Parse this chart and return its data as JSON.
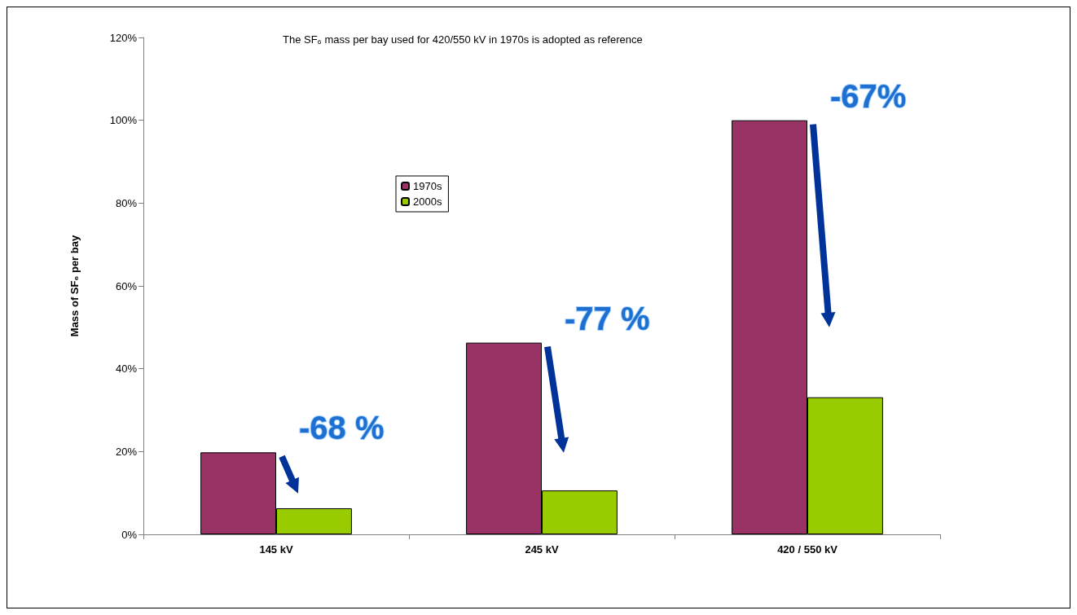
{
  "chart_data": {
    "type": "bar",
    "title": "The SF₆ mass per bay used for 420/550 kV in 1970s is adopted as reference",
    "ylabel": "Mass of SF₆ per bay",
    "categories": [
      "145 kV",
      "245 kV",
      "420 / 550 kV"
    ],
    "series": [
      {
        "name": "1970s",
        "color": "#993366",
        "values": [
          19.8,
          46.3,
          100
        ]
      },
      {
        "name": "2000s",
        "color": "#99cc00",
        "values": [
          6.3,
          10.6,
          33.1
        ]
      }
    ],
    "ylim": [
      0,
      120
    ],
    "yticks": [
      {
        "value": 0,
        "label": "0%"
      },
      {
        "value": 20,
        "label": "20%"
      },
      {
        "value": 40,
        "label": "40%"
      },
      {
        "value": 60,
        "label": "60%"
      },
      {
        "value": 80,
        "label": "80%"
      },
      {
        "value": 100,
        "label": "100%"
      },
      {
        "value": 120,
        "label": "120%"
      }
    ],
    "annotations": [
      "-68 %",
      "-77 %",
      "-67%"
    ],
    "grid": false,
    "legend": "top left"
  }
}
